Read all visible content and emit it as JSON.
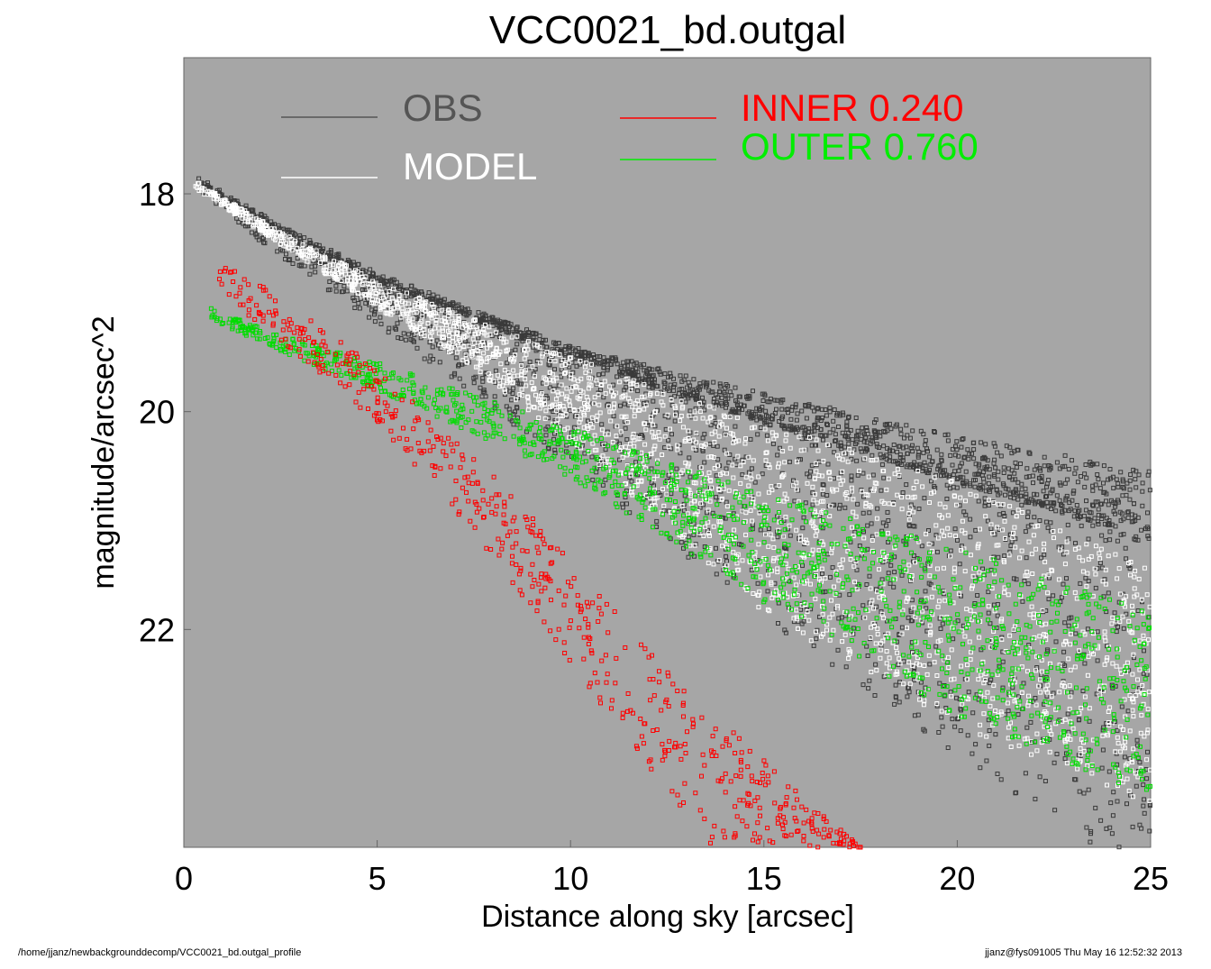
{
  "chart_data": {
    "type": "scatter",
    "title": "VCC0021_bd.outgal",
    "xlabel": "Distance along sky [arcsec]",
    "ylabel": "magnitude/arcsec^2",
    "xlim": [
      0,
      25
    ],
    "ylim": [
      24.0,
      16.75
    ],
    "y_inverted": true,
    "x_ticks": [
      "0",
      "5",
      "10",
      "15",
      "20",
      "25"
    ],
    "y_ticks": [
      "18",
      "20",
      "22"
    ],
    "background": "#a6a6a6",
    "legend": [
      {
        "name": "OBS",
        "color": "#555555"
      },
      {
        "name": "MODEL",
        "color": "#ffffff"
      },
      {
        "name": "INNER  0.240",
        "color": "#ff0000"
      },
      {
        "name": "OUTER  0.760",
        "color": "#00ee00"
      }
    ],
    "series": [
      {
        "name": "OBS",
        "color": "#3a3a3a",
        "trend": [
          [
            0.3,
            17.88
          ],
          [
            2.5,
            18.35
          ],
          [
            5,
            18.8
          ],
          [
            10,
            19.5
          ],
          [
            15,
            20.1
          ],
          [
            20,
            20.65
          ],
          [
            25,
            21.15
          ]
        ],
        "spread_upper": [
          [
            0.3,
            0.05
          ],
          [
            10,
            0.1
          ],
          [
            25,
            0.6
          ]
        ],
        "spread_lower": [
          [
            0.3,
            0.08
          ],
          [
            5,
            0.4
          ],
          [
            10,
            1.0
          ],
          [
            15,
            1.8
          ],
          [
            25,
            3.2
          ]
        ]
      },
      {
        "name": "MODEL",
        "color": "#ffffff",
        "upper_edge": [
          [
            0.3,
            17.88
          ],
          [
            2.5,
            18.35
          ],
          [
            5,
            18.8
          ],
          [
            10,
            19.5
          ],
          [
            15,
            20.1
          ],
          [
            20,
            20.65
          ],
          [
            25,
            21.45
          ]
        ],
        "lower_edge": [
          [
            0.3,
            17.95
          ],
          [
            5,
            19.05
          ],
          [
            7.5,
            19.6
          ],
          [
            10,
            20.3
          ],
          [
            12.5,
            21.05
          ],
          [
            15,
            21.85
          ],
          [
            20,
            22.9
          ],
          [
            25,
            23.6
          ]
        ]
      },
      {
        "name": "INNER",
        "color": "#ff0000",
        "upper_edge": [
          [
            0.7,
            18.55
          ],
          [
            2.5,
            18.95
          ],
          [
            5,
            19.6
          ],
          [
            7.5,
            20.4
          ],
          [
            10,
            21.35
          ],
          [
            12.5,
            22.35
          ],
          [
            15,
            23.2
          ],
          [
            17.5,
            24.0
          ]
        ],
        "lower_edge": [
          [
            0.7,
            18.85
          ],
          [
            2.5,
            19.35
          ],
          [
            5,
            20.1
          ],
          [
            7.5,
            21.1
          ],
          [
            10,
            22.3
          ],
          [
            12.5,
            23.55
          ],
          [
            13.5,
            24.0
          ]
        ]
      },
      {
        "name": "OUTER",
        "color": "#00dd00",
        "upper_edge": [
          [
            0.7,
            19.05
          ],
          [
            2.5,
            19.3
          ],
          [
            5,
            19.55
          ],
          [
            10,
            20.15
          ],
          [
            15,
            20.75
          ],
          [
            20,
            21.25
          ],
          [
            25,
            21.8
          ]
        ],
        "lower_edge": [
          [
            0.7,
            19.15
          ],
          [
            2.5,
            19.45
          ],
          [
            5,
            19.8
          ],
          [
            10,
            20.6
          ],
          [
            15,
            21.75
          ],
          [
            20,
            22.8
          ],
          [
            25,
            23.55
          ]
        ]
      }
    ]
  },
  "footer": {
    "path": "/home/jjanz/newbackgrounddecomp/VCC0021_bd.outgal_profile",
    "user_date": "jjanz@fys091005  Thu May 16 12:52:32 2013"
  }
}
